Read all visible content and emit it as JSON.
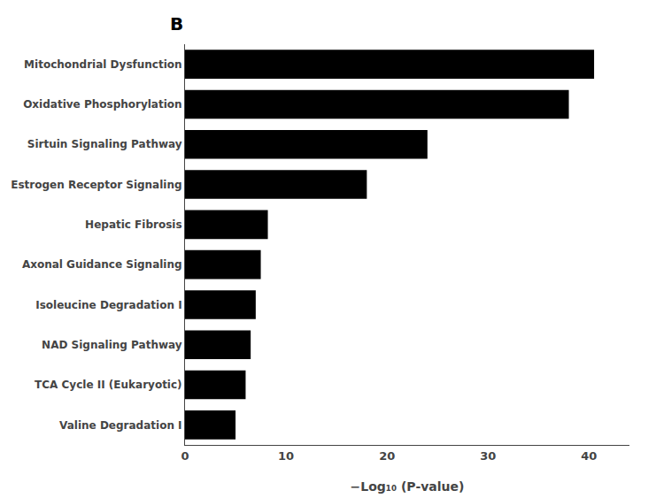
{
  "chart_data": {
    "type": "bar",
    "orientation": "horizontal",
    "categories": [
      "Valine Degradation I",
      "TCA Cycle II (Eukaryotic)",
      "NAD Signaling Pathway",
      "Isoleucine Degradation I",
      "Axonal Guidance Signaling",
      "Hepatic Fibrosis",
      "Estrogen Receptor Signaling",
      "Sirtuin Signaling Pathway",
      "Oxidative Phosphorylation",
      "Mitochondrial Dysfunction"
    ],
    "values": [
      5.0,
      6.0,
      6.5,
      7.0,
      7.5,
      8.2,
      18.0,
      24.0,
      38.0,
      40.5
    ],
    "color": "#000000",
    "xlim": [
      0,
      44
    ],
    "xticks": [
      0,
      10,
      20,
      30,
      40
    ],
    "xlabel": "−Log₁₀ (P-value)",
    "annotations": [
      "B"
    ],
    "grid": false
  }
}
